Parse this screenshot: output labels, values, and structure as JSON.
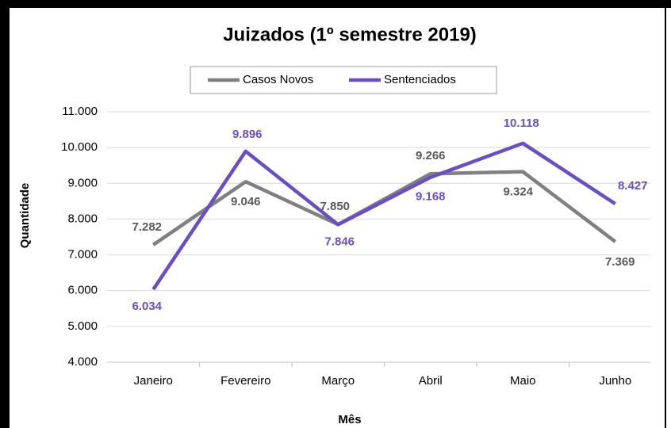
{
  "chart_data": {
    "type": "line",
    "title": "Juizados (1º semestre 2019)",
    "x_label": "Mês",
    "y_label": "Quantidade",
    "categories": [
      "Janeiro",
      "Fevereiro",
      "Março",
      "Abril",
      "Maio",
      "Junho"
    ],
    "series": [
      {
        "name": "Casos Novos",
        "color": "#808080",
        "values": [
          7282,
          9046,
          7850,
          9266,
          9324,
          7369
        ],
        "value_labels": [
          "7.282",
          "9.046",
          "7.850",
          "9.266",
          "9.324",
          "7.369"
        ]
      },
      {
        "name": "Sentenciados",
        "color": "#6a4fc4",
        "values": [
          6034,
          9896,
          7846,
          9168,
          10118,
          8427
        ],
        "value_labels": [
          "6.034",
          "9.896",
          "7.846",
          "9.168",
          "10.118",
          "8.427"
        ]
      }
    ],
    "ylim": [
      4000,
      11000
    ],
    "yticks": [
      {
        "value": 4000,
        "label": "4.000"
      },
      {
        "value": 5000,
        "label": "5.000"
      },
      {
        "value": 6000,
        "label": "6.000"
      },
      {
        "value": 7000,
        "label": "7.000"
      },
      {
        "value": 8000,
        "label": "8.000"
      },
      {
        "value": 9000,
        "label": "9.000"
      },
      {
        "value": 10000,
        "label": "10.000"
      },
      {
        "value": 11000,
        "label": "11.000"
      }
    ],
    "grid": true,
    "legend": "top"
  }
}
